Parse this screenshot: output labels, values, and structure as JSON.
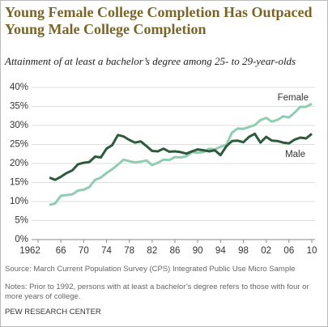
{
  "chart_data": {
    "type": "line",
    "title": "Young Female College Completion Has Outpaced Young Male College Completion",
    "subtitle": "Attainment of at least a bachelor’s degree among 25- to 29-year-olds",
    "source": "Source: March Current Population Survey (CPS) Integrated Public Use Micro Sample",
    "notes": "Notes: Prior to 1992, persons with at least a bachelor’s degree refers to those with four or more years of college.",
    "footer": "PEW RESEARCH CENTER",
    "x": [
      1964,
      1965,
      1966,
      1967,
      1968,
      1969,
      1970,
      1971,
      1972,
      1973,
      1974,
      1975,
      1976,
      1977,
      1978,
      1979,
      1980,
      1981,
      1982,
      1983,
      1984,
      1985,
      1986,
      1987,
      1988,
      1989,
      1990,
      1991,
      1992,
      1993,
      1994,
      1995,
      1996,
      1997,
      1998,
      1999,
      2000,
      2001,
      2002,
      2003,
      2004,
      2005,
      2006,
      2007,
      2008,
      2009,
      2010
    ],
    "series": [
      {
        "name": "Female",
        "color": "#8fcdb3",
        "values": [
          9.1,
          9.5,
          11.5,
          11.7,
          11.9,
          12.9,
          13.1,
          13.8,
          15.7,
          16.3,
          17.5,
          18.5,
          19.7,
          21.0,
          20.6,
          20.3,
          20.5,
          20.8,
          19.6,
          20.2,
          21.0,
          20.9,
          21.7,
          21.6,
          21.9,
          23.0,
          22.8,
          23.0,
          23.9,
          23.7,
          24.4,
          24.9,
          28.1,
          29.2,
          29.1,
          29.6,
          30.1,
          31.4,
          32.0,
          31.0,
          31.5,
          32.4,
          32.1,
          33.4,
          34.9,
          34.9,
          35.7
        ]
      },
      {
        "name": "Male",
        "color": "#2d5a3d",
        "values": [
          16.3,
          15.7,
          16.5,
          17.5,
          18.2,
          19.8,
          20.2,
          20.4,
          21.8,
          21.6,
          23.9,
          24.8,
          27.5,
          27.1,
          26.2,
          25.5,
          25.8,
          24.6,
          23.3,
          23.2,
          23.9,
          23.1,
          23.2,
          23.0,
          22.6,
          23.2,
          23.7,
          23.5,
          23.2,
          23.5,
          22.2,
          24.5,
          25.9,
          26.0,
          25.6,
          27.0,
          27.8,
          25.5,
          27.0,
          26.0,
          25.9,
          25.5,
          25.3,
          26.3,
          26.8,
          26.6,
          27.8
        ]
      }
    ],
    "xlim": [
      1962,
      2010
    ],
    "xticks": [
      1962,
      {
        "value": 1966,
        "label": "66"
      },
      {
        "value": 1970,
        "label": "70"
      },
      {
        "value": 1974,
        "label": "74"
      },
      {
        "value": 1978,
        "label": "78"
      },
      {
        "value": 1982,
        "label": "82"
      },
      {
        "value": 1986,
        "label": "86"
      },
      {
        "value": 1990,
        "label": "90"
      },
      {
        "value": 1994,
        "label": "94"
      },
      {
        "value": 1998,
        "label": "98"
      },
      {
        "value": 2002,
        "label": "02"
      },
      {
        "value": 2006,
        "label": "06"
      },
      {
        "value": 2010,
        "label": "10"
      }
    ],
    "ylim": [
      0,
      40
    ],
    "yticks": [
      {
        "value": 0,
        "label": "0%"
      },
      {
        "value": 5,
        "label": "5%"
      },
      {
        "value": 10,
        "label": "10%"
      },
      {
        "value": 15,
        "label": "15%"
      },
      {
        "value": 20,
        "label": "20%"
      },
      {
        "value": 25,
        "label": "25%"
      },
      {
        "value": 30,
        "label": "30%"
      },
      {
        "value": 35,
        "label": "35%"
      },
      {
        "value": 40,
        "label": "40%"
      }
    ],
    "grid": true
  }
}
